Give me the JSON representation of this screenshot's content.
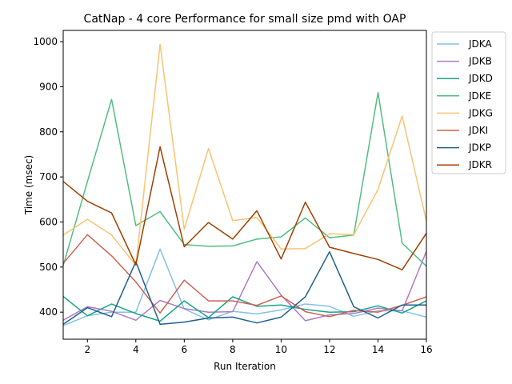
{
  "chart_data": {
    "type": "line",
    "title": "CatNap - 4 core Performance for small size pmd with OAP",
    "xlabel": "Run Iteration",
    "ylabel": "Time (msec)",
    "xlim": [
      1,
      16
    ],
    "ylim": [
      340,
      1025
    ],
    "xticks": [
      2,
      4,
      6,
      8,
      10,
      12,
      14,
      16
    ],
    "yticks": [
      400,
      500,
      600,
      700,
      800,
      900,
      1000
    ],
    "grid": false,
    "legend_position": "upper-right-outside",
    "x": [
      1,
      2,
      3,
      4,
      5,
      6,
      7,
      8,
      9,
      10,
      11,
      12,
      13,
      14,
      15,
      16
    ],
    "series": [
      {
        "name": "JDKA",
        "color": "#85c1e9",
        "values": [
          370,
          392,
          400,
          400,
          540,
          407,
          383,
          402,
          396,
          405,
          418,
          413,
          391,
          403,
          403,
          389
        ]
      },
      {
        "name": "JDKB",
        "color": "#af7ac5",
        "values": [
          382,
          412,
          402,
          382,
          426,
          408,
          400,
          401,
          512,
          438,
          381,
          394,
          397,
          409,
          403,
          535
        ]
      },
      {
        "name": "JDKD",
        "color": "#17a589",
        "values": [
          435,
          392,
          418,
          397,
          380,
          425,
          388,
          434,
          413,
          416,
          406,
          400,
          401,
          414,
          398,
          425
        ]
      },
      {
        "name": "JDKE",
        "color": "#52be80",
        "values": [
          503,
          690,
          872,
          592,
          623,
          550,
          546,
          547,
          562,
          567,
          609,
          565,
          571,
          887,
          553,
          502
        ]
      },
      {
        "name": "JDKG",
        "color": "#f8c471",
        "values": [
          571,
          606,
          571,
          504,
          994,
          584,
          763,
          603,
          610,
          540,
          541,
          574,
          572,
          672,
          835,
          602
        ]
      },
      {
        "name": "JDKI",
        "color": "#cd6155",
        "values": [
          508,
          572,
          525,
          467,
          398,
          471,
          425,
          425,
          415,
          436,
          401,
          390,
          404,
          400,
          415,
          434
        ]
      },
      {
        "name": "JDKP",
        "color": "#21618c",
        "values": [
          373,
          410,
          390,
          512,
          373,
          378,
          387,
          389,
          376,
          389,
          434,
          534,
          412,
          387,
          416,
          416
        ]
      },
      {
        "name": "JDKR",
        "color": "#a04000",
        "values": [
          690,
          646,
          620,
          505,
          767,
          545,
          599,
          562,
          625,
          518,
          644,
          544,
          530,
          517,
          494,
          575
        ]
      }
    ]
  }
}
